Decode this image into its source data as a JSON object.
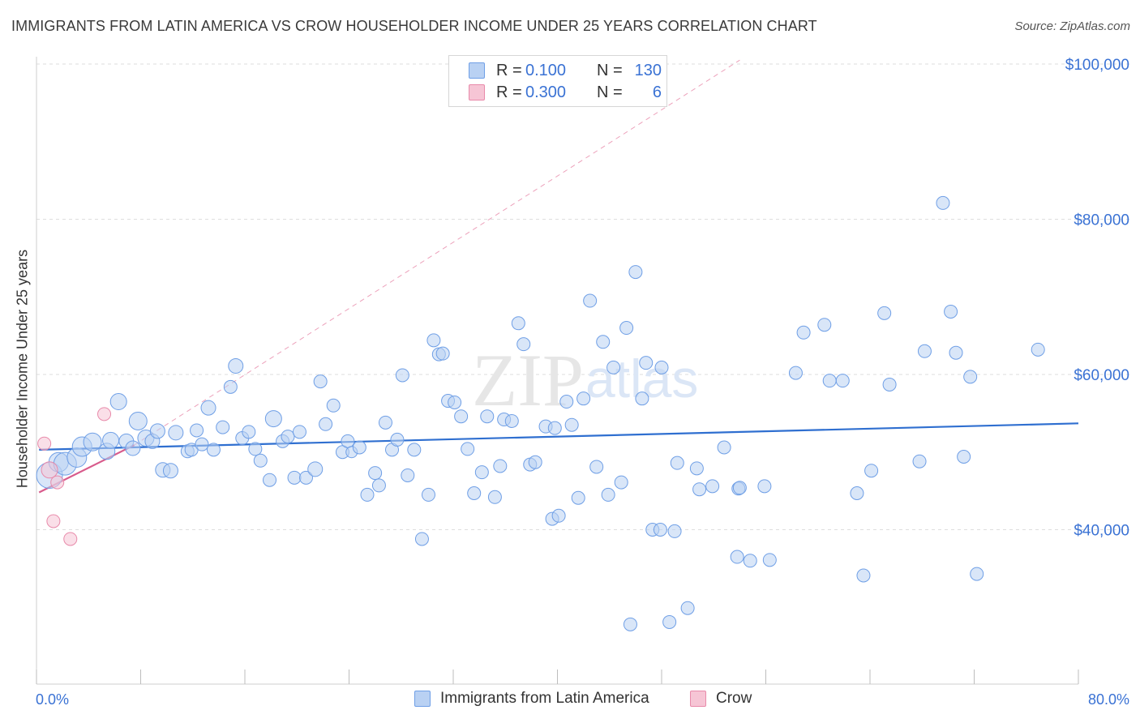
{
  "title": "IMMIGRANTS FROM LATIN AMERICA VS CROW HOUSEHOLDER INCOME UNDER 25 YEARS CORRELATION CHART",
  "source": "Source: ZipAtlas.com",
  "legend": {
    "r_label": "R =",
    "n_label": "N =",
    "rows": [
      {
        "r": "0.100",
        "n": "130",
        "color": "#6f9fe6",
        "fill": "#b9d1f3"
      },
      {
        "r": "0.300",
        "n": "6",
        "color": "#e88aaa",
        "fill": "#f6c5d5"
      }
    ]
  },
  "bottom_legend": [
    {
      "label": "Immigrants from Latin America",
      "color": "#6f9fe6",
      "fill": "#b9d1f3"
    },
    {
      "label": "Crow",
      "color": "#e88aaa",
      "fill": "#f6c5d5"
    }
  ],
  "chart_data": {
    "type": "scatter",
    "xlabel": "",
    "ylabel": "Householder Income Under 25 years",
    "xlim": [
      0,
      80
    ],
    "ylim": [
      20000,
      102000
    ],
    "x_tick_labels": [
      "0.0%",
      "80.0%"
    ],
    "y_ticks": [
      40000,
      60000,
      80000,
      100000
    ],
    "y_tick_labels": [
      "$40,000",
      "$60,000",
      "$80,000",
      "$100,000"
    ],
    "grid": true,
    "watermark": "ZIPatlas",
    "series": [
      {
        "name": "Immigrants from Latin America",
        "color": "#6f9fe6",
        "fill": "#b9d1f3",
        "trend": {
          "x": [
            0.2,
            80
          ],
          "y": [
            50300,
            53700
          ],
          "dashed": false
        },
        "points": [
          [
            1.0,
            47000,
            16
          ],
          [
            1.7,
            48700,
            12
          ],
          [
            2.2,
            48500,
            14
          ],
          [
            3.1,
            49300,
            12
          ],
          [
            3.5,
            50700,
            12
          ],
          [
            4.3,
            51300,
            11
          ],
          [
            5.4,
            50100,
            10
          ],
          [
            5.7,
            51500,
            10
          ],
          [
            6.3,
            56500,
            10
          ],
          [
            6.9,
            51400,
            9
          ],
          [
            7.4,
            50500,
            9
          ],
          [
            7.8,
            54000,
            11
          ],
          [
            8.4,
            51800,
            10
          ],
          [
            8.9,
            51400,
            9
          ],
          [
            9.3,
            52700,
            9
          ],
          [
            9.7,
            47700,
            9
          ],
          [
            10.3,
            47600,
            9
          ],
          [
            10.7,
            52500,
            9
          ],
          [
            11.6,
            50100,
            8
          ],
          [
            11.9,
            50300,
            8
          ],
          [
            12.3,
            52800,
            8
          ],
          [
            12.7,
            51000,
            8
          ],
          [
            13.2,
            55700,
            9
          ],
          [
            13.6,
            50300,
            8
          ],
          [
            14.3,
            53200,
            8
          ],
          [
            14.9,
            58400,
            8
          ],
          [
            15.3,
            61100,
            9
          ],
          [
            15.8,
            51800,
            8
          ],
          [
            16.3,
            52600,
            8
          ],
          [
            16.8,
            50400,
            8
          ],
          [
            17.2,
            48900,
            8
          ],
          [
            17.9,
            46400,
            8
          ],
          [
            18.2,
            54300,
            10
          ],
          [
            18.9,
            51400,
            8
          ],
          [
            19.3,
            52000,
            8
          ],
          [
            19.8,
            46700,
            8
          ],
          [
            20.2,
            52600,
            8
          ],
          [
            20.7,
            46700,
            8
          ],
          [
            21.4,
            47800,
            9
          ],
          [
            21.8,
            59100,
            8
          ],
          [
            22.2,
            53600,
            8
          ],
          [
            22.8,
            56000,
            8
          ],
          [
            23.5,
            50000,
            8
          ],
          [
            23.9,
            51400,
            8
          ],
          [
            24.2,
            50000,
            7
          ],
          [
            24.8,
            50600,
            8
          ],
          [
            25.4,
            44500,
            8
          ],
          [
            26.0,
            47300,
            8
          ],
          [
            26.3,
            45700,
            8
          ],
          [
            26.8,
            53800,
            8
          ],
          [
            27.3,
            50300,
            8
          ],
          [
            27.7,
            51600,
            8
          ],
          [
            28.1,
            59900,
            8
          ],
          [
            28.5,
            47000,
            8
          ],
          [
            29.0,
            50300,
            8
          ],
          [
            29.6,
            38800,
            8
          ],
          [
            30.1,
            44500,
            8
          ],
          [
            30.5,
            64400,
            8
          ],
          [
            30.9,
            62600,
            8
          ],
          [
            31.2,
            62700,
            8
          ],
          [
            31.6,
            56600,
            8
          ],
          [
            32.1,
            56400,
            8
          ],
          [
            32.6,
            54600,
            8
          ],
          [
            33.1,
            50400,
            8
          ],
          [
            33.6,
            44700,
            8
          ],
          [
            34.2,
            47400,
            8
          ],
          [
            34.6,
            54600,
            8
          ],
          [
            35.2,
            44200,
            8
          ],
          [
            35.6,
            48200,
            8
          ],
          [
            35.9,
            54200,
            8
          ],
          [
            36.5,
            54000,
            8
          ],
          [
            37.0,
            66600,
            8
          ],
          [
            37.4,
            63900,
            8
          ],
          [
            37.9,
            48400,
            8
          ],
          [
            38.3,
            48700,
            8
          ],
          [
            39.1,
            53300,
            8
          ],
          [
            39.6,
            41400,
            8
          ],
          [
            40.1,
            41800,
            8
          ],
          [
            40.7,
            56500,
            8
          ],
          [
            41.1,
            53500,
            8
          ],
          [
            41.6,
            44100,
            8
          ],
          [
            42.0,
            56900,
            8
          ],
          [
            42.5,
            69500,
            8
          ],
          [
            43.0,
            48100,
            8
          ],
          [
            43.5,
            64200,
            8
          ],
          [
            43.9,
            44500,
            8
          ],
          [
            44.3,
            60900,
            8
          ],
          [
            44.9,
            46100,
            8
          ],
          [
            45.3,
            66000,
            8
          ],
          [
            46.0,
            73200,
            8
          ],
          [
            46.5,
            56900,
            8
          ],
          [
            46.8,
            61500,
            8
          ],
          [
            47.3,
            40000,
            8
          ],
          [
            48.0,
            60900,
            8
          ],
          [
            48.6,
            28100,
            8
          ],
          [
            49.0,
            39800,
            8
          ],
          [
            49.2,
            48600,
            8
          ],
          [
            50.0,
            29900,
            8
          ],
          [
            50.7,
            47900,
            8
          ],
          [
            50.9,
            45200,
            8
          ],
          [
            51.9,
            45600,
            8
          ],
          [
            52.8,
            50600,
            8
          ],
          [
            53.8,
            36500,
            8
          ],
          [
            54.8,
            36000,
            8
          ],
          [
            55.9,
            45600,
            8
          ],
          [
            56.3,
            36100,
            8
          ],
          [
            58.3,
            60200,
            8
          ],
          [
            58.9,
            65400,
            8
          ],
          [
            60.5,
            66400,
            8
          ],
          [
            61.9,
            59200,
            8
          ],
          [
            63.0,
            44700,
            8
          ],
          [
            63.5,
            34100,
            8
          ],
          [
            64.1,
            47600,
            8
          ],
          [
            65.1,
            67900,
            8
          ],
          [
            65.5,
            58700,
            8
          ],
          [
            67.8,
            48800,
            8
          ],
          [
            68.2,
            63000,
            8
          ],
          [
            69.6,
            82100,
            8
          ],
          [
            70.2,
            68100,
            8
          ],
          [
            70.6,
            62800,
            8
          ],
          [
            71.2,
            49400,
            8
          ],
          [
            71.7,
            59700,
            8
          ],
          [
            72.2,
            34300,
            8
          ],
          [
            76.9,
            63200,
            8
          ],
          [
            53.9,
            45300,
            8
          ],
          [
            54.0,
            45400,
            8
          ],
          [
            45.6,
            27800,
            8
          ],
          [
            60.9,
            59200,
            8
          ],
          [
            39.8,
            53100,
            8
          ],
          [
            47.9,
            40000,
            8
          ]
        ]
      },
      {
        "name": "Crow",
        "color": "#e88aaa",
        "fill": "#f6c5d5",
        "trend": {
          "x": [
            0.2,
            7.5
          ],
          "y": [
            44800,
            50900
          ],
          "dashed": false,
          "extension_x": [
            7.5,
            54
          ],
          "extension_y": [
            50900,
            100500
          ]
        },
        "points": [
          [
            0.6,
            51100,
            8
          ],
          [
            1.0,
            47700,
            10
          ],
          [
            1.6,
            46100,
            8
          ],
          [
            1.3,
            41100,
            8
          ],
          [
            2.6,
            38800,
            8
          ],
          [
            5.2,
            54900,
            8
          ]
        ]
      }
    ]
  }
}
